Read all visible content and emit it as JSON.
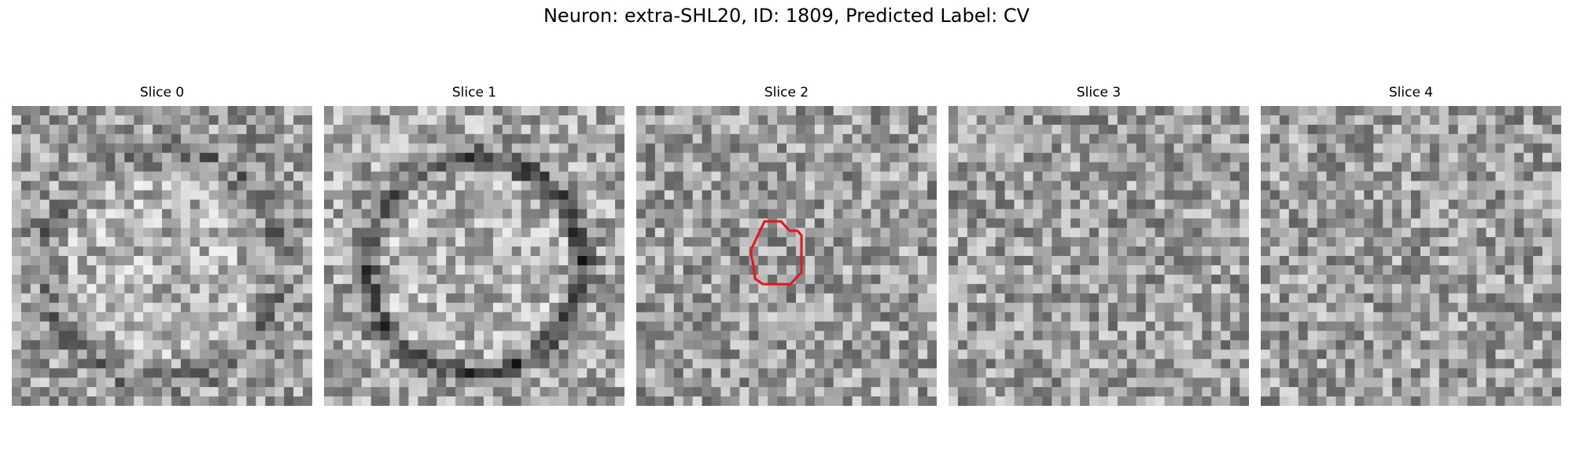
{
  "figure": {
    "title": "Neuron: extra-SHL20, ID: 1809, Predicted Label: CV"
  },
  "panels": [
    {
      "title": "Slice 0",
      "pattern": "faint-ring",
      "has_contour": false
    },
    {
      "title": "Slice 1",
      "pattern": "dark-ring",
      "has_contour": false
    },
    {
      "title": "Slice 2",
      "pattern": "noise",
      "has_contour": true
    },
    {
      "title": "Slice 3",
      "pattern": "noise",
      "has_contour": false
    },
    {
      "title": "Slice 4",
      "pattern": "noise",
      "has_contour": false
    }
  ],
  "colors": {
    "contour": "#e8141c",
    "background": "#ffffff",
    "text": "#000000"
  },
  "colormap": "grayscale"
}
